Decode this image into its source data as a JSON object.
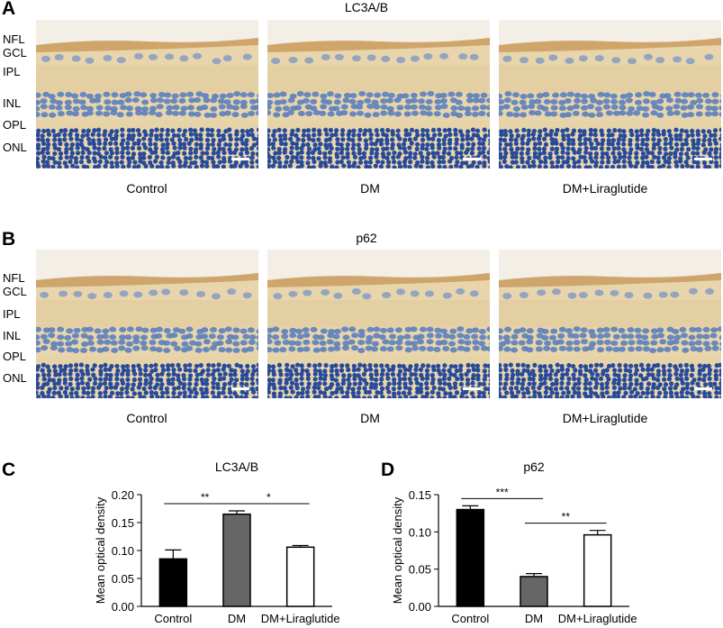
{
  "panel_a": {
    "letter": "A",
    "title": "LC3A/B",
    "layer_labels": [
      "NFL",
      "GCL",
      "IPL",
      "INL",
      "OPL",
      "ONL"
    ],
    "captions": [
      "Control",
      "DM",
      "DM+Liraglutide"
    ]
  },
  "panel_b": {
    "letter": "B",
    "title": "p62",
    "layer_labels": [
      "NFL",
      "GCL",
      "IPL",
      "INL",
      "OPL",
      "ONL"
    ],
    "captions": [
      "Control",
      "DM",
      "DM+Liraglutide"
    ]
  },
  "panel_c": {
    "letter": "C"
  },
  "panel_d": {
    "letter": "D"
  },
  "colors": {
    "control": "#000000",
    "dm": "#666666",
    "liraglutide": "#ffffff",
    "tissue": "#e9d9b4",
    "nuclei": "#3b5ea8"
  },
  "chart_data": [
    {
      "type": "bar",
      "title": "LC3A/B",
      "ylabel": "Mean optical density",
      "xlabel": "",
      "categories": [
        "Control",
        "DM",
        "DM+Liraglutide"
      ],
      "values": [
        0.085,
        0.165,
        0.106
      ],
      "errors": [
        0.016,
        0.006,
        0.003
      ],
      "ylim": [
        0,
        0.2
      ],
      "yticks": [
        "0.00",
        "0.05",
        "0.10",
        "0.15",
        "0.20"
      ],
      "significance": [
        {
          "pair": [
            0,
            1
          ],
          "label": "**"
        },
        {
          "pair": [
            1,
            2
          ],
          "label": "*"
        }
      ]
    },
    {
      "type": "bar",
      "title": "p62",
      "ylabel": "Mean optical density",
      "xlabel": "",
      "categories": [
        "Control",
        "DM",
        "DM+Liraglutide"
      ],
      "values": [
        0.13,
        0.04,
        0.096
      ],
      "errors": [
        0.005,
        0.004,
        0.006
      ],
      "ylim": [
        0,
        0.15
      ],
      "yticks": [
        "0.00",
        "0.05",
        "0.10",
        "0.15"
      ],
      "significance": [
        {
          "pair": [
            0,
            1
          ],
          "label": "***"
        },
        {
          "pair": [
            1,
            2
          ],
          "label": "**"
        }
      ]
    }
  ]
}
